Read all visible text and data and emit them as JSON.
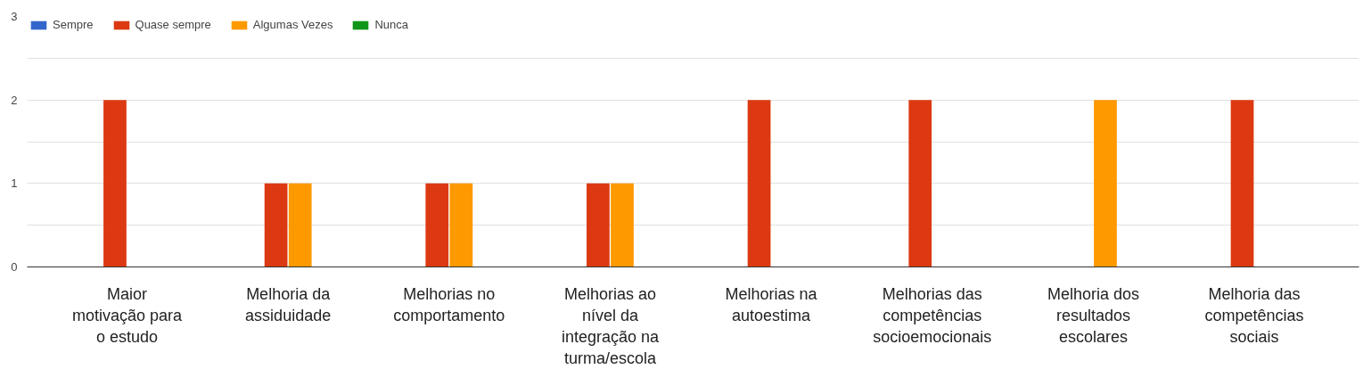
{
  "chart_data": {
    "type": "bar",
    "categories": [
      "Maior motivação para o estudo",
      "Melhoria da assiduidade",
      "Melhorias no comportamento",
      "Melhorias ao nível da integração na turma/escola",
      "Melhorias na autoestima",
      "Melhorias das competências socioemocionais",
      "Melhoria dos resultados escolares",
      "Melhoria das competências sociais"
    ],
    "series": [
      {
        "name": "Sempre",
        "color": "#3366cc",
        "values": [
          0,
          0,
          0,
          0,
          0,
          0,
          0,
          0
        ]
      },
      {
        "name": "Quase sempre",
        "color": "#dc3912",
        "values": [
          2,
          1,
          1,
          1,
          2,
          2,
          0,
          2
        ]
      },
      {
        "name": "Algumas Vezes",
        "color": "#ff9900",
        "values": [
          0,
          1,
          1,
          1,
          0,
          0,
          2,
          0
        ]
      },
      {
        "name": "Nunca",
        "color": "#109618",
        "values": [
          0,
          0,
          0,
          0,
          0,
          0,
          0,
          0
        ]
      }
    ],
    "ylim": [
      0,
      3
    ],
    "yticks": [
      0,
      {
        "value": 0.5,
        "label": null
      },
      1,
      {
        "value": 1.5,
        "label": null
      },
      2,
      {
        "value": 2.5,
        "label": null
      },
      3
    ],
    "grid": "y",
    "legend": "top left"
  }
}
